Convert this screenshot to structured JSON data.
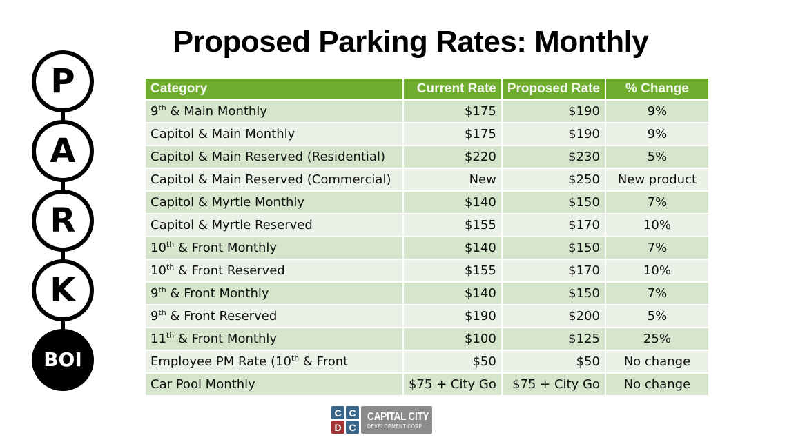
{
  "slide": {
    "title": "Proposed Parking Rates: Monthly"
  },
  "logo": {
    "letters": [
      "P",
      "A",
      "R",
      "K"
    ],
    "badge": "BOI"
  },
  "table": {
    "header_color": "#6fad2f",
    "row_color_odd": "#d6e6cc",
    "row_color_even": "#ebf1e7",
    "headers": {
      "category": "Category",
      "current": "Current Rate",
      "proposed": "Proposed Rate",
      "change": "% Change"
    },
    "rows": [
      {
        "cat_pre": "9",
        "cat_sup": "th",
        "cat_post": " & Main Monthly",
        "current": "$175",
        "proposed": "$190",
        "change": "9%"
      },
      {
        "cat_pre": "Capitol & Main Monthly",
        "cat_sup": "",
        "cat_post": "",
        "current": "$175",
        "proposed": "$190",
        "change": "9%"
      },
      {
        "cat_pre": "Capitol & Main Reserved (Residential)",
        "cat_sup": "",
        "cat_post": "",
        "current": "$220",
        "proposed": "$230",
        "change": "5%"
      },
      {
        "cat_pre": "Capitol & Main Reserved (Commercial)",
        "cat_sup": "",
        "cat_post": "",
        "current": "New",
        "proposed": "$250",
        "change": "New product"
      },
      {
        "cat_pre": "Capitol & Myrtle Monthly",
        "cat_sup": "",
        "cat_post": "",
        "current": "$140",
        "proposed": "$150",
        "change": "7%"
      },
      {
        "cat_pre": "Capitol & Myrtle Reserved",
        "cat_sup": "",
        "cat_post": "",
        "current": "$155",
        "proposed": "$170",
        "change": "10%"
      },
      {
        "cat_pre": "10",
        "cat_sup": "th",
        "cat_post": " & Front Monthly",
        "current": "$140",
        "proposed": "$150",
        "change": "7%"
      },
      {
        "cat_pre": "10",
        "cat_sup": "th",
        "cat_post": " & Front Reserved",
        "current": "$155",
        "proposed": "$170",
        "change": "10%"
      },
      {
        "cat_pre": "9",
        "cat_sup": "th",
        "cat_post": " & Front Monthly",
        "current": "$140",
        "proposed": "$150",
        "change": "7%"
      },
      {
        "cat_pre": "9",
        "cat_sup": "th",
        "cat_post": " & Front Reserved",
        "current": "$190",
        "proposed": "$200",
        "change": "5%"
      },
      {
        "cat_pre": "11",
        "cat_sup": "th",
        "cat_post": " & Front Monthly",
        "current": "$100",
        "proposed": "$125",
        "change": "25%"
      },
      {
        "cat_pre": "Employee PM Rate (10",
        "cat_sup": "th",
        "cat_post": " & Front",
        "current": "$50",
        "proposed": "$50",
        "change": "No change"
      },
      {
        "cat_pre": "Car Pool Monthly",
        "cat_sup": "",
        "cat_post": "",
        "current": "$75 + City Go",
        "proposed": "$75 + City Go",
        "change": "No change"
      }
    ]
  },
  "footer_logo": {
    "squares": [
      "C",
      "C",
      "D",
      "C"
    ],
    "name_line1": "CAPITAL CITY",
    "name_line2": "DEVELOPMENT CORP",
    "blue": "#3a6789",
    "red": "#a33234",
    "gray": "#8b8b8b"
  }
}
